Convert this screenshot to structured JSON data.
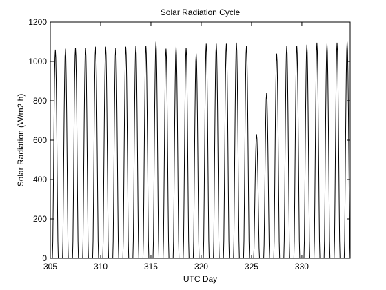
{
  "chart_data": {
    "type": "line",
    "title": "Solar Radiation Cycle",
    "xlabel": "UTC Day",
    "ylabel": "Solar Radiation (W/m2 h)",
    "xlim": [
      305,
      334.8
    ],
    "ylim": [
      0,
      1200
    ],
    "xticks": [
      305,
      310,
      315,
      320,
      325,
      330
    ],
    "yticks": [
      0,
      200,
      400,
      600,
      800,
      1000,
      1200
    ],
    "grid": false,
    "line_color": "#000000",
    "series": [
      {
        "day_peak_values": [
          1060,
          1065,
          1070,
          1070,
          1075,
          1075,
          1070,
          1075,
          1080,
          1080,
          1100,
          1065,
          1075,
          1070,
          1040,
          1090,
          1090,
          1090,
          1095,
          1080,
          630,
          840,
          1040,
          1080,
          1080,
          1085,
          1095,
          1090,
          1095,
          1100
        ],
        "first_day": 305,
        "sunrise_fraction": 0.22,
        "sunset_fraction": 0.78
      }
    ]
  }
}
